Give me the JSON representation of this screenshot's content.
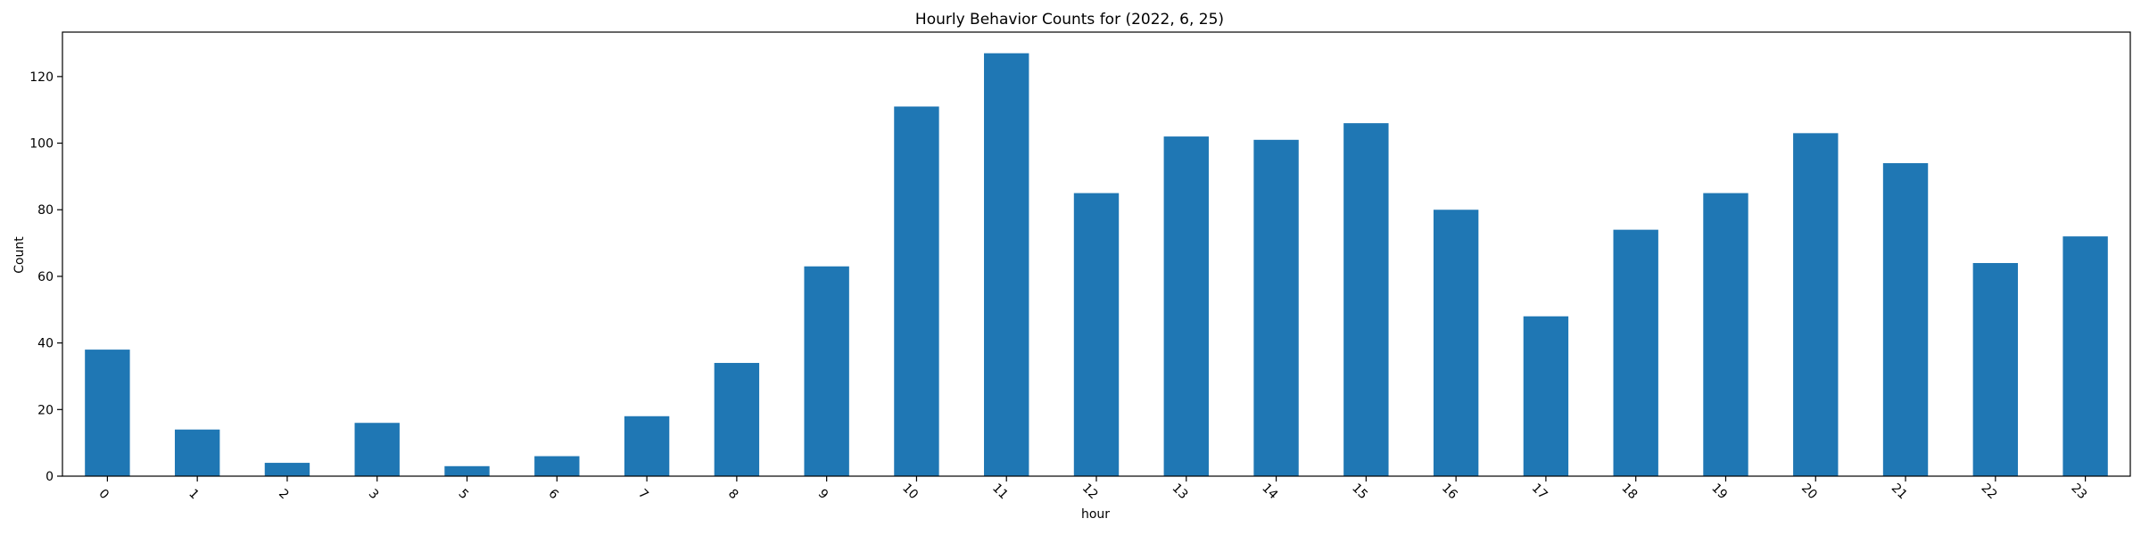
{
  "chart_data": {
    "type": "bar",
    "title": "Hourly Behavior Counts for (2022, 6, 25)",
    "xlabel": "hour",
    "ylabel": "Count",
    "categories": [
      "0",
      "1",
      "2",
      "3",
      "5",
      "6",
      "7",
      "8",
      "9",
      "10",
      "11",
      "12",
      "13",
      "14",
      "15",
      "16",
      "17",
      "18",
      "19",
      "20",
      "21",
      "22",
      "23"
    ],
    "values": [
      38,
      14,
      4,
      16,
      3,
      6,
      18,
      34,
      63,
      111,
      127,
      85,
      102,
      101,
      106,
      80,
      48,
      74,
      85,
      103,
      94,
      64,
      72
    ],
    "ylim": [
      0,
      133.35
    ],
    "yticks": [
      0,
      20,
      40,
      60,
      80,
      100,
      120
    ],
    "bar_color": "#1f77b4",
    "grid": false,
    "xtick_rotation": "45 degrees"
  }
}
